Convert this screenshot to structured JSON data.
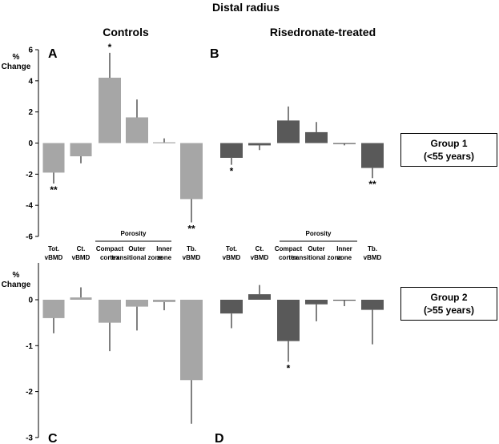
{
  "figure": {
    "title": "Distal radius",
    "column_titles": [
      "Controls",
      "Risedronate-treated"
    ],
    "ylabel_line1": "%",
    "ylabel_line2": "Change",
    "porosity_label": "Porosity",
    "categories": [
      [
        "Tot.",
        "vBMD"
      ],
      [
        "Ct.",
        "vBMD"
      ],
      [
        "Compact",
        "cortex"
      ],
      [
        "Outer",
        "transitional zone"
      ],
      [
        "Inner",
        "zone"
      ],
      [
        "Tb.",
        "vBMD"
      ]
    ],
    "groups": [
      {
        "line1": "Group 1",
        "line2": "(<55 years)"
      },
      {
        "line1": "Group 2",
        "line2": "(>55 years)"
      }
    ],
    "colors": {
      "controls": "#a6a6a6",
      "risedronate": "#595959"
    }
  },
  "chart_data": [
    {
      "panel": "A",
      "type": "bar",
      "title": "Controls",
      "ylabel": "% Change",
      "group": "Group 1 (<55 years)",
      "categories": [
        "Tot. vBMD",
        "Ct. vBMD",
        "Compact cortex",
        "Outer transitional zone",
        "Inner zone",
        "Tb. vBMD"
      ],
      "ylim": [
        -6,
        6
      ],
      "yticks": [
        6,
        4,
        2,
        0,
        -2,
        -4,
        -6
      ],
      "values": [
        -1.9,
        -0.85,
        4.2,
        1.65,
        0.05,
        -3.6
      ],
      "errors": [
        0.7,
        0.45,
        1.6,
        1.15,
        0.25,
        1.5
      ],
      "significance": [
        "**",
        "",
        "*",
        "",
        "",
        "**"
      ]
    },
    {
      "panel": "B",
      "type": "bar",
      "title": "Risedronate-treated",
      "ylabel": "% Change",
      "group": "Group 1 (<55 years)",
      "categories": [
        "Tot. vBMD",
        "Ct. vBMD",
        "Compact cortex",
        "Outer transitional zone",
        "Inner zone",
        "Tb. vBMD"
      ],
      "ylim": [
        -6,
        6
      ],
      "values": [
        -0.95,
        -0.15,
        1.45,
        0.7,
        -0.05,
        -1.6
      ],
      "errors": [
        0.45,
        0.3,
        0.9,
        0.65,
        0.1,
        0.65
      ],
      "significance": [
        "*",
        "",
        "",
        "",
        "",
        "**"
      ]
    },
    {
      "panel": "C",
      "type": "bar",
      "title": "Controls",
      "ylabel": "% Change",
      "group": "Group 2 (>55 years)",
      "categories": [
        "Tot. vBMD",
        "Ct. vBMD",
        "Compact cortex",
        "Outer transitional zone",
        "Inner zone",
        "Tb. vBMD"
      ],
      "ylim": [
        -3,
        0.3
      ],
      "yticks": [
        0,
        -1,
        -2,
        -3
      ],
      "values": [
        -0.4,
        0.05,
        -0.5,
        -0.15,
        -0.05,
        -1.75
      ],
      "errors": [
        0.33,
        0.22,
        0.62,
        0.52,
        0.18,
        0.95
      ],
      "significance": [
        "",
        "",
        "",
        "",
        "",
        ""
      ]
    },
    {
      "panel": "D",
      "type": "bar",
      "title": "Risedronate-treated",
      "ylabel": "% Change",
      "group": "Group 2 (>55 years)",
      "categories": [
        "Tot. vBMD",
        "Ct. vBMD",
        "Compact cortex",
        "Outer transitional zone",
        "Inner zone",
        "Tb. vBMD"
      ],
      "ylim": [
        -3,
        0.3
      ],
      "values": [
        -0.3,
        0.12,
        -0.9,
        -0.1,
        -0.02,
        -0.22
      ],
      "errors": [
        0.32,
        0.2,
        0.45,
        0.37,
        0.12,
        0.75
      ],
      "significance": [
        "",
        "",
        "*",
        "",
        "",
        ""
      ]
    }
  ]
}
